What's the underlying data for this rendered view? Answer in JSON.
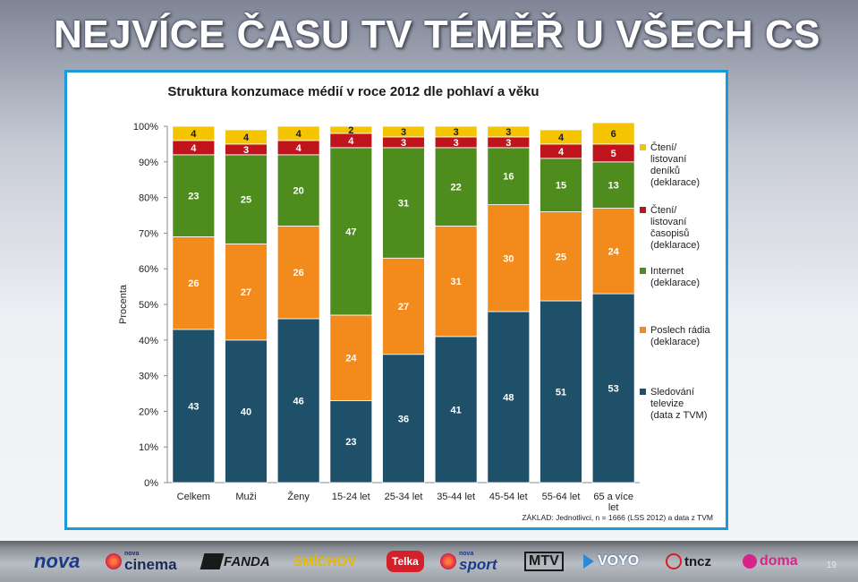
{
  "slide": {
    "title": "NEJVÍCE ČASU TV TÉMĚŘ U VŠECH CS",
    "page_number": "19"
  },
  "chart_data": {
    "type": "bar",
    "stacked": true,
    "title": "Struktura konzumace médií v roce 2012 dle pohlaví a věku",
    "ylabel": "Procenta",
    "xlabel": "",
    "ylim": [
      0,
      100
    ],
    "yticks": [
      "0%",
      "10%",
      "20%",
      "30%",
      "40%",
      "50%",
      "60%",
      "70%",
      "80%",
      "90%",
      "100%"
    ],
    "categories": [
      "Celkem",
      "Muži",
      "Ženy",
      "15-24 let",
      "25-34 let",
      "35-44 let",
      "45-54 let",
      "55-64 let",
      "65 a více let"
    ],
    "series": [
      {
        "name": "Sledování televize (data z TVM)",
        "color": "#1f5069",
        "values": [
          43,
          40,
          46,
          23,
          36,
          41,
          48,
          51,
          53
        ]
      },
      {
        "name": "Poslech rádia (deklarace)",
        "color": "#f28a1c",
        "values": [
          26,
          27,
          26,
          24,
          27,
          31,
          30,
          25,
          24
        ]
      },
      {
        "name": "Internet (deklarace)",
        "color": "#4f8c1e",
        "values": [
          23,
          25,
          20,
          47,
          31,
          22,
          16,
          15,
          13
        ]
      },
      {
        "name": "Čtení/ listovaní časopisů (deklarace)",
        "color": "#c0141c",
        "values": [
          4,
          3,
          4,
          4,
          3,
          3,
          3,
          4,
          5
        ]
      },
      {
        "name": "Čtení/ listovaní deníků (deklarace)",
        "color": "#f5c400",
        "values": [
          4,
          4,
          4,
          2,
          3,
          3,
          3,
          4,
          6
        ]
      }
    ],
    "legend": {
      "position": "right",
      "entries": [
        [
          "Čtení/",
          "listovaní",
          "deníků",
          "(deklarace)"
        ],
        [
          "Čtení/",
          "listovaní",
          "časopisů",
          "(deklarace)"
        ],
        [
          "Internet",
          "(deklarace)"
        ],
        [
          "Poslech rádia",
          "(deklarace)"
        ],
        [
          "Sledování",
          "televize",
          "(data z TVM)"
        ]
      ]
    },
    "grid": false,
    "note": "ZÁKLAD: Jednotlivci, n = 1666 (LSS 2012) a data z TVM"
  },
  "footer": {
    "logos": [
      {
        "name": "nova",
        "text": "nova",
        "color": "#1a3a8c"
      },
      {
        "name": "nova-cinema",
        "text": "cinema",
        "color": "#1a2a5a",
        "small": "nova"
      },
      {
        "name": "fanda",
        "text": "FANDA",
        "color": "#1a1a1a"
      },
      {
        "name": "smichov",
        "text": "SMÍCHOV",
        "color": "#e6b800"
      },
      {
        "name": "telka",
        "text": "Telka",
        "color": "#ffffff"
      },
      {
        "name": "nova-sport",
        "text": "sport",
        "color": "#1a3a8c",
        "small": "nova"
      },
      {
        "name": "mtv",
        "text": "MTV",
        "color": "#1a1a1a"
      },
      {
        "name": "voyo",
        "text": "VOYO",
        "color": "#ffffff"
      },
      {
        "name": "tncz",
        "text": "tncz",
        "color": "#1a1a1a"
      },
      {
        "name": "doma",
        "text": "doma",
        "color": "#d6248a"
      }
    ]
  }
}
